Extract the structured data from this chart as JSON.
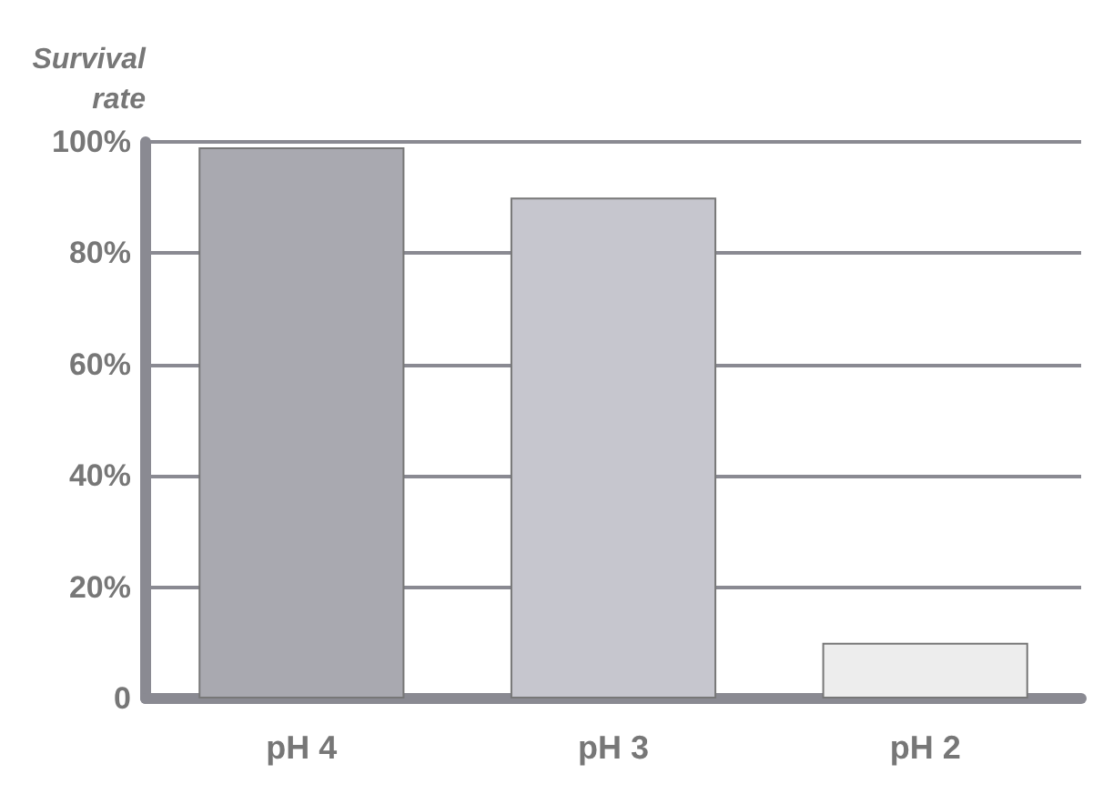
{
  "chart_data": {
    "type": "bar",
    "ylabel": "Survival\nrate",
    "categories": [
      "pH 4",
      "pH 3",
      "pH 2"
    ],
    "values": [
      99,
      90,
      10
    ],
    "colors": [
      "#a9a9b0",
      "#c6c6ce",
      "#ededed"
    ],
    "ylim": [
      0,
      100
    ],
    "yticks": [
      0,
      {
        "value": 20,
        "label": "20%"
      },
      {
        "value": 40,
        "label": "40%"
      },
      {
        "value": 60,
        "label": "60%"
      },
      {
        "value": 80,
        "label": "80%"
      },
      {
        "value": 100,
        "label": "100%"
      }
    ],
    "grid": "y"
  }
}
